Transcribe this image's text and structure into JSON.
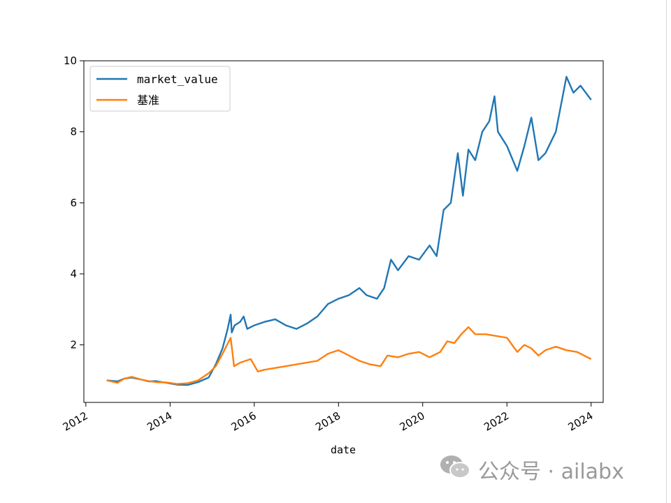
{
  "chart_data": {
    "type": "line",
    "title": "",
    "xlabel": "date",
    "ylabel": "",
    "x_type": "date",
    "xlim": [
      "2011-12-15",
      "2024-04-15"
    ],
    "ylim": [
      0.38,
      10.0
    ],
    "x_ticks": [
      "2012",
      "2014",
      "2016",
      "2018",
      "2020",
      "2022",
      "2024"
    ],
    "y_ticks": [
      "2",
      "4",
      "6",
      "8",
      "10"
    ],
    "grid": false,
    "legend": "top-left",
    "series": [
      {
        "name": "market_value",
        "color": "#1f77b4",
        "points": [
          [
            "2012-07-01",
            1.0
          ],
          [
            "2012-10-01",
            0.97
          ],
          [
            "2012-12-01",
            1.05
          ],
          [
            "2013-02-01",
            1.08
          ],
          [
            "2013-05-01",
            1.02
          ],
          [
            "2013-07-01",
            0.97
          ],
          [
            "2013-09-01",
            0.98
          ],
          [
            "2013-12-01",
            0.93
          ],
          [
            "2014-03-01",
            0.88
          ],
          [
            "2014-06-01",
            0.87
          ],
          [
            "2014-09-01",
            0.95
          ],
          [
            "2014-12-01",
            1.08
          ],
          [
            "2015-02-01",
            1.45
          ],
          [
            "2015-04-01",
            1.9
          ],
          [
            "2015-05-15",
            2.45
          ],
          [
            "2015-06-10",
            2.85
          ],
          [
            "2015-06-20",
            2.35
          ],
          [
            "2015-07-15",
            2.55
          ],
          [
            "2015-09-01",
            2.65
          ],
          [
            "2015-10-01",
            2.8
          ],
          [
            "2015-11-01",
            2.45
          ],
          [
            "2016-01-01",
            2.55
          ],
          [
            "2016-04-01",
            2.65
          ],
          [
            "2016-07-01",
            2.72
          ],
          [
            "2016-10-01",
            2.55
          ],
          [
            "2017-01-01",
            2.45
          ],
          [
            "2017-04-01",
            2.6
          ],
          [
            "2017-07-01",
            2.8
          ],
          [
            "2017-10-01",
            3.15
          ],
          [
            "2018-01-01",
            3.3
          ],
          [
            "2018-04-01",
            3.4
          ],
          [
            "2018-07-01",
            3.6
          ],
          [
            "2018-09-01",
            3.4
          ],
          [
            "2018-12-01",
            3.3
          ],
          [
            "2019-02-01",
            3.6
          ],
          [
            "2019-04-01",
            4.4
          ],
          [
            "2019-06-01",
            4.1
          ],
          [
            "2019-09-01",
            4.5
          ],
          [
            "2019-12-01",
            4.4
          ],
          [
            "2020-03-01",
            4.8
          ],
          [
            "2020-05-01",
            4.5
          ],
          [
            "2020-07-01",
            5.8
          ],
          [
            "2020-09-01",
            6.0
          ],
          [
            "2020-11-01",
            7.4
          ],
          [
            "2020-12-15",
            6.2
          ],
          [
            "2021-02-01",
            7.5
          ],
          [
            "2021-04-01",
            7.2
          ],
          [
            "2021-06-01",
            8.0
          ],
          [
            "2021-08-01",
            8.3
          ],
          [
            "2021-09-15",
            9.0
          ],
          [
            "2021-10-15",
            8.0
          ],
          [
            "2022-01-01",
            7.6
          ],
          [
            "2022-04-01",
            6.9
          ],
          [
            "2022-06-01",
            7.6
          ],
          [
            "2022-08-01",
            8.4
          ],
          [
            "2022-10-01",
            7.2
          ],
          [
            "2022-12-01",
            7.4
          ],
          [
            "2023-03-01",
            8.0
          ],
          [
            "2023-06-01",
            9.55
          ],
          [
            "2023-08-01",
            9.1
          ],
          [
            "2023-10-01",
            9.3
          ],
          [
            "2024-01-01",
            8.9
          ]
        ]
      },
      {
        "name": "基准",
        "color": "#ff7f0e",
        "points": [
          [
            "2012-07-01",
            1.0
          ],
          [
            "2012-10-01",
            0.93
          ],
          [
            "2012-12-01",
            1.05
          ],
          [
            "2013-02-01",
            1.1
          ],
          [
            "2013-05-01",
            1.02
          ],
          [
            "2013-07-01",
            0.98
          ],
          [
            "2013-09-01",
            0.95
          ],
          [
            "2013-12-01",
            0.94
          ],
          [
            "2014-03-01",
            0.9
          ],
          [
            "2014-06-01",
            0.92
          ],
          [
            "2014-09-01",
            1.0
          ],
          [
            "2014-12-01",
            1.2
          ],
          [
            "2015-02-01",
            1.4
          ],
          [
            "2015-04-01",
            1.75
          ],
          [
            "2015-06-10",
            2.2
          ],
          [
            "2015-07-10",
            1.4
          ],
          [
            "2015-09-01",
            1.5
          ],
          [
            "2015-12-01",
            1.6
          ],
          [
            "2016-02-01",
            1.25
          ],
          [
            "2016-04-01",
            1.3
          ],
          [
            "2016-07-01",
            1.35
          ],
          [
            "2016-10-01",
            1.4
          ],
          [
            "2017-01-01",
            1.45
          ],
          [
            "2017-04-01",
            1.5
          ],
          [
            "2017-07-01",
            1.55
          ],
          [
            "2017-10-01",
            1.75
          ],
          [
            "2018-01-01",
            1.85
          ],
          [
            "2018-04-01",
            1.7
          ],
          [
            "2018-07-01",
            1.55
          ],
          [
            "2018-10-01",
            1.45
          ],
          [
            "2019-01-01",
            1.4
          ],
          [
            "2019-03-01",
            1.7
          ],
          [
            "2019-06-01",
            1.65
          ],
          [
            "2019-09-01",
            1.75
          ],
          [
            "2019-12-01",
            1.8
          ],
          [
            "2020-03-01",
            1.65
          ],
          [
            "2020-06-01",
            1.8
          ],
          [
            "2020-08-01",
            2.1
          ],
          [
            "2020-10-01",
            2.05
          ],
          [
            "2020-12-01",
            2.3
          ],
          [
            "2021-02-01",
            2.5
          ],
          [
            "2021-04-01",
            2.3
          ],
          [
            "2021-07-01",
            2.3
          ],
          [
            "2021-10-01",
            2.25
          ],
          [
            "2022-01-01",
            2.2
          ],
          [
            "2022-04-01",
            1.8
          ],
          [
            "2022-06-01",
            2.0
          ],
          [
            "2022-08-01",
            1.9
          ],
          [
            "2022-10-01",
            1.7
          ],
          [
            "2022-12-01",
            1.85
          ],
          [
            "2023-03-01",
            1.95
          ],
          [
            "2023-06-01",
            1.85
          ],
          [
            "2023-09-01",
            1.8
          ],
          [
            "2023-12-01",
            1.65
          ],
          [
            "2024-01-01",
            1.6
          ]
        ]
      }
    ]
  },
  "watermark": {
    "icon": "wechat-icon",
    "text": "公众号 · ailabx"
  }
}
